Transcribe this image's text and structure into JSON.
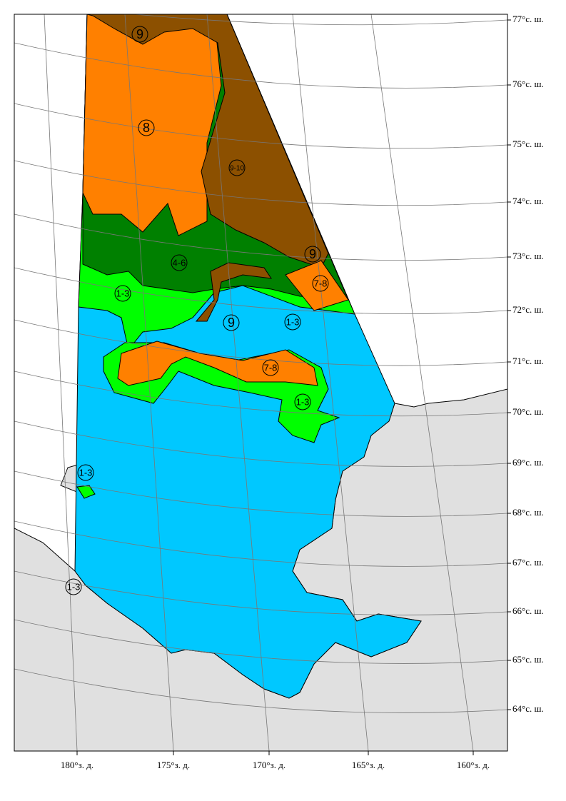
{
  "map": {
    "latitude_labels": [
      "77°с. ш.",
      "76°с. ш.",
      "75°с. ш.",
      "74°с. ш.",
      "73°с. ш.",
      "72°с. ш.",
      "71°с. ш.",
      "70°с. ш.",
      "69°с. ш.",
      "68°с. ш.",
      "67°с. ш.",
      "66°с. ш.",
      "65°с. ш.",
      "64°с. ш."
    ],
    "longitude_labels": [
      "180°з. д.",
      "175°з. д.",
      "170°з. д.",
      "165°з. д.",
      "160°з. д."
    ],
    "zone_labels": [
      "9",
      "8",
      "9-10",
      "9",
      "4-6",
      "7-8",
      "1-3",
      "9",
      "1-3",
      "7-8",
      "1-3",
      "1-3",
      "1-3"
    ]
  }
}
